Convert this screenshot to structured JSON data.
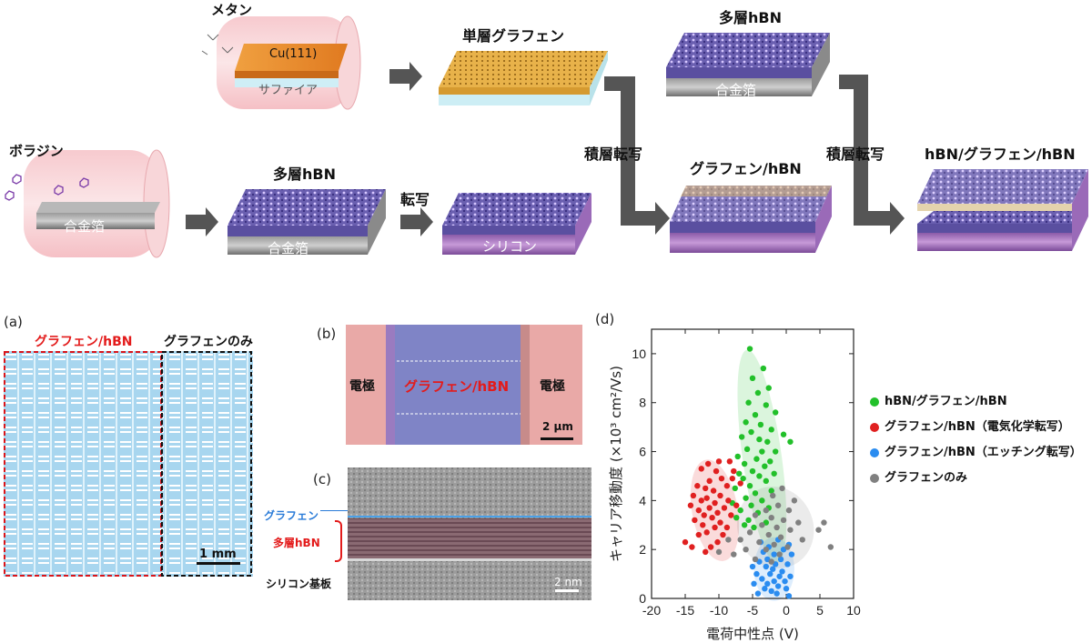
{
  "process": {
    "methane": "メタン",
    "cu111": "Cu(111)",
    "sapphire": "サファイア",
    "monolayer_graphene": "単層グラフェン",
    "borazine": "ボラジン",
    "alloy_foil_1": "合金箔",
    "multilayer_hbn_1": "多層hBN",
    "alloy_foil_2": "合金箔",
    "transfer": "転写",
    "silicon": "シリコン",
    "stack_transfer_1": "積層転写",
    "graphene_hbn": "グラフェン/hBN",
    "multilayer_hbn_2": "多層hBN",
    "alloy_foil_3": "合金箔",
    "stack_transfer_2": "積層転写",
    "hbn_graphene_hbn": "hBN/グラフェン/hBN"
  },
  "panel_a": {
    "letter": "(a)",
    "label_left": "グラフェン/hBN",
    "label_right": "グラフェンのみ",
    "scale": "1 mm"
  },
  "panel_b": {
    "letter": "(b)",
    "electrode_left": "電極",
    "center": "グラフェン/hBN",
    "electrode_right": "電極",
    "scale": "2 μm"
  },
  "panel_c": {
    "letter": "(c)",
    "graphene": "グラフェン",
    "multilayer_hbn": "多層hBN",
    "silicon_substrate": "シリコン基板",
    "scale": "2 nm"
  },
  "panel_d": {
    "letter": "(d)"
  },
  "colors": {
    "green": "#22c02a",
    "red": "#e02020",
    "blue": "#2a8cf0",
    "gray": "#808080",
    "arrow": "#555555",
    "red_text": "#e31b1b"
  },
  "chart_data": {
    "type": "scatter",
    "xlabel": "電荷中性点 (V)",
    "ylabel": "キャリア移動度 (×10³ cm²/Vs)",
    "xlim": [
      -20,
      10
    ],
    "ylim": [
      0,
      11
    ],
    "xticks": [
      "-20",
      "-15",
      "-10",
      "-5",
      "0",
      "5",
      "10"
    ],
    "yticks": [
      "0",
      "2",
      "4",
      "6",
      "8",
      "10"
    ],
    "legend_position": "right",
    "series": [
      {
        "name": "hBN/グラフェン/hBN",
        "color": "#22c02a",
        "points": [
          [
            -5.4,
            10.2
          ],
          [
            -3.4,
            9.4
          ],
          [
            -5.0,
            9.0
          ],
          [
            -4.2,
            8.4
          ],
          [
            -2.6,
            8.6
          ],
          [
            -5.6,
            8.0
          ],
          [
            -3.0,
            7.9
          ],
          [
            -1.6,
            7.6
          ],
          [
            -4.6,
            7.5
          ],
          [
            -6.0,
            7.2
          ],
          [
            -3.8,
            7.1
          ],
          [
            -2.2,
            6.9
          ],
          [
            -5.2,
            6.8
          ],
          [
            -0.4,
            6.7
          ],
          [
            -6.6,
            6.6
          ],
          [
            -4.0,
            6.5
          ],
          [
            -2.8,
            6.4
          ],
          [
            0.6,
            6.4
          ],
          [
            -5.8,
            6.1
          ],
          [
            -3.6,
            6.0
          ],
          [
            -1.6,
            6.0
          ],
          [
            -7.2,
            5.8
          ],
          [
            -4.4,
            5.7
          ],
          [
            -2.4,
            5.6
          ],
          [
            -6.2,
            5.5
          ],
          [
            -3.2,
            5.4
          ],
          [
            -5.0,
            5.2
          ],
          [
            -7.0,
            5.1
          ],
          [
            -1.8,
            5.1
          ],
          [
            -4.0,
            5.0
          ],
          [
            -6.4,
            4.9
          ],
          [
            -3.0,
            4.8
          ],
          [
            -5.4,
            4.6
          ],
          [
            -7.6,
            4.5
          ],
          [
            -2.2,
            4.4
          ],
          [
            -4.6,
            4.3
          ],
          [
            -6.0,
            4.1
          ],
          [
            -3.6,
            4.0
          ],
          [
            -8.0,
            3.9
          ],
          [
            -5.2,
            3.8
          ],
          [
            -2.6,
            3.7
          ],
          [
            -6.8,
            3.6
          ],
          [
            -4.2,
            3.5
          ],
          [
            -7.4,
            3.3
          ],
          [
            -5.6,
            3.2
          ],
          [
            -3.0,
            3.1
          ],
          [
            -6.2,
            3.0
          ],
          [
            -4.8,
            2.9
          ]
        ]
      },
      {
        "name": "グラフェン/hBN（電気化学転写）",
        "color": "#e02020",
        "points": [
          [
            -8.0,
            4.9
          ],
          [
            -12.6,
            5.3
          ],
          [
            -10.4,
            5.2
          ],
          [
            -11.4,
            4.8
          ],
          [
            -13.2,
            4.6
          ],
          [
            -9.6,
            4.9
          ],
          [
            -12.0,
            4.5
          ],
          [
            -10.8,
            4.4
          ],
          [
            -8.8,
            4.6
          ],
          [
            -13.8,
            4.2
          ],
          [
            -11.8,
            4.1
          ],
          [
            -9.8,
            4.2
          ],
          [
            -12.6,
            4.0
          ],
          [
            -10.6,
            3.9
          ],
          [
            -8.6,
            4.0
          ],
          [
            -14.2,
            3.8
          ],
          [
            -11.4,
            3.7
          ],
          [
            -9.2,
            3.7
          ],
          [
            -13.0,
            3.6
          ],
          [
            -10.2,
            3.5
          ],
          [
            -12.2,
            3.4
          ],
          [
            -8.2,
            3.4
          ],
          [
            -11.0,
            3.3
          ],
          [
            -13.6,
            3.2
          ],
          [
            -9.8,
            3.1
          ],
          [
            -12.4,
            3.0
          ],
          [
            -10.6,
            2.9
          ],
          [
            -8.8,
            2.9
          ],
          [
            -11.8,
            2.7
          ],
          [
            -13.0,
            2.6
          ],
          [
            -9.4,
            2.6
          ],
          [
            -10.2,
            2.3
          ],
          [
            -11.2,
            2.1
          ],
          [
            -14.0,
            2.1
          ],
          [
            -12.0,
            1.9
          ],
          [
            -15.0,
            2.3
          ],
          [
            -8.4,
            5.6
          ],
          [
            -6.8,
            4.7
          ],
          [
            -7.4,
            3.8
          ],
          [
            -7.8,
            5.2
          ],
          [
            -10.0,
            5.6
          ],
          [
            -11.6,
            5.5
          ]
        ]
      },
      {
        "name": "グラフェン/hBN（エッチング転写）",
        "color": "#2a8cf0",
        "points": [
          [
            -1.2,
            2.4
          ],
          [
            0.4,
            2.2
          ],
          [
            -2.6,
            2.1
          ],
          [
            -0.4,
            2.0
          ],
          [
            -3.4,
            1.9
          ],
          [
            -1.8,
            1.8
          ],
          [
            0.8,
            1.8
          ],
          [
            -2.8,
            1.6
          ],
          [
            -0.8,
            1.6
          ],
          [
            -4.0,
            1.5
          ],
          [
            -1.6,
            1.4
          ],
          [
            0.2,
            1.4
          ],
          [
            -3.0,
            1.3
          ],
          [
            -2.0,
            1.2
          ],
          [
            -0.6,
            1.1
          ],
          [
            -4.4,
            1.0
          ],
          [
            -2.4,
            1.0
          ],
          [
            -1.0,
            0.9
          ],
          [
            0.6,
            0.9
          ],
          [
            -3.6,
            0.8
          ],
          [
            -1.8,
            0.7
          ],
          [
            -0.2,
            0.7
          ],
          [
            -2.8,
            0.6
          ],
          [
            -4.8,
            0.6
          ],
          [
            -1.2,
            0.5
          ],
          [
            -3.2,
            0.4
          ],
          [
            0.0,
            0.4
          ],
          [
            -2.2,
            0.3
          ],
          [
            -4.2,
            0.2
          ],
          [
            -1.4,
            0.2
          ],
          [
            -5.0,
            1.3
          ],
          [
            -3.8,
            2.3
          ],
          [
            0.4,
            0.1
          ]
        ]
      },
      {
        "name": "グラフェンのみ",
        "color": "#808080",
        "points": [
          [
            -0.6,
            4.5
          ],
          [
            -2.0,
            4.2
          ],
          [
            1.2,
            4.0
          ],
          [
            -1.2,
            3.8
          ],
          [
            -3.0,
            3.6
          ],
          [
            0.4,
            3.6
          ],
          [
            -4.6,
            3.4
          ],
          [
            -2.2,
            3.3
          ],
          [
            -0.4,
            3.2
          ],
          [
            1.8,
            3.1
          ],
          [
            -3.6,
            3.0
          ],
          [
            -1.4,
            2.9
          ],
          [
            0.6,
            2.8
          ],
          [
            -5.4,
            2.7
          ],
          [
            -2.6,
            2.6
          ],
          [
            -0.8,
            2.5
          ],
          [
            2.4,
            2.4
          ],
          [
            -4.0,
            2.3
          ],
          [
            -1.8,
            2.2
          ],
          [
            0.2,
            2.1
          ],
          [
            -3.0,
            2.0
          ],
          [
            -6.0,
            2.0
          ],
          [
            -1.0,
            1.8
          ],
          [
            -4.6,
            1.6
          ],
          [
            -2.2,
            1.5
          ],
          [
            5.6,
            3.1
          ],
          [
            4.8,
            2.8
          ],
          [
            6.6,
            2.1
          ],
          [
            -6.8,
            2.4
          ],
          [
            -7.8,
            1.8
          ],
          [
            -8.6,
            2.4
          ],
          [
            -10.0,
            1.9
          ]
        ]
      }
    ]
  }
}
